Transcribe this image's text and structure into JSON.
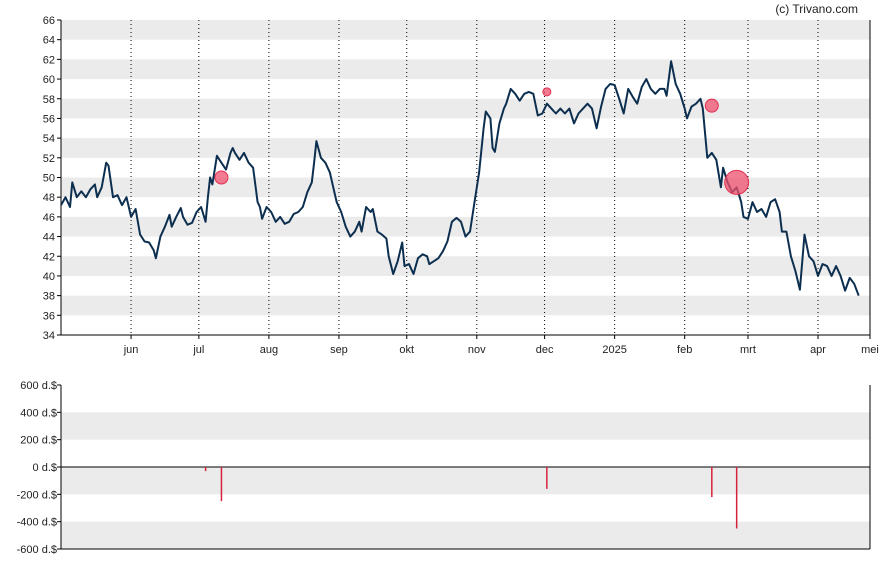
{
  "credit": "(c) Trivano.com",
  "colors": {
    "price_line": "#0d2f4f",
    "band": "#ebebeb",
    "marker": "#f0506e",
    "bar": "#d6233c",
    "axis": "#000000"
  },
  "chart_data": [
    {
      "type": "line",
      "ylim": [
        34,
        66
      ],
      "y_ticks": [
        "34",
        "36",
        "38",
        "40",
        "42",
        "44",
        "46",
        "48",
        "50",
        "52",
        "54",
        "56",
        "58",
        "60",
        "62",
        "64",
        "66"
      ],
      "x_range_days": [
        0,
        358
      ],
      "x_ticks": [
        {
          "label": "jun",
          "day": 31
        },
        {
          "label": "jul",
          "day": 61
        },
        {
          "label": "aug",
          "day": 92
        },
        {
          "label": "sep",
          "day": 123
        },
        {
          "label": "okt",
          "day": 153
        },
        {
          "label": "nov",
          "day": 184
        },
        {
          "label": "dec",
          "day": 214
        },
        {
          "label": "2025",
          "day": 245
        },
        {
          "label": "feb",
          "day": 276
        },
        {
          "label": "mrt",
          "day": 304
        },
        {
          "label": "apr",
          "day": 335
        },
        {
          "label": "mei",
          "day": 358
        }
      ],
      "series": [
        {
          "values": [
            [
              0,
              47.2
            ],
            [
              2,
              48.0
            ],
            [
              4,
              47.0
            ],
            [
              5,
              49.5
            ],
            [
              7,
              48.0
            ],
            [
              9,
              48.6
            ],
            [
              11,
              48.0
            ],
            [
              13,
              48.8
            ],
            [
              15,
              49.3
            ],
            [
              16,
              48.0
            ],
            [
              18,
              49.0
            ],
            [
              20,
              51.5
            ],
            [
              21,
              51.2
            ],
            [
              23,
              48.0
            ],
            [
              25,
              48.2
            ],
            [
              27,
              47.2
            ],
            [
              29,
              48.0
            ],
            [
              31,
              46.0
            ],
            [
              33,
              46.8
            ],
            [
              35,
              44.2
            ],
            [
              37,
              43.5
            ],
            [
              39,
              43.4
            ],
            [
              41,
              42.6
            ],
            [
              42,
              41.8
            ],
            [
              44,
              44.0
            ],
            [
              46,
              45.0
            ],
            [
              48,
              46.2
            ],
            [
              49,
              45.0
            ],
            [
              51,
              46.0
            ],
            [
              53,
              46.9
            ],
            [
              54,
              46.0
            ],
            [
              56,
              45.2
            ],
            [
              58,
              45.4
            ],
            [
              60,
              46.5
            ],
            [
              62,
              47.0
            ],
            [
              64,
              45.5
            ],
            [
              65,
              48.0
            ],
            [
              66,
              50.0
            ],
            [
              67,
              49.3
            ],
            [
              69,
              52.2
            ],
            [
              71,
              51.5
            ],
            [
              73,
              50.8
            ],
            [
              75,
              52.5
            ],
            [
              76,
              53.0
            ],
            [
              77,
              52.5
            ],
            [
              79,
              51.8
            ],
            [
              81,
              52.5
            ],
            [
              83,
              51.5
            ],
            [
              85,
              51.0
            ],
            [
              87,
              47.5
            ],
            [
              88,
              47.0
            ],
            [
              89,
              45.8
            ],
            [
              91,
              47.0
            ],
            [
              93,
              46.5
            ],
            [
              95,
              45.5
            ],
            [
              97,
              46.0
            ],
            [
              99,
              45.3
            ],
            [
              101,
              45.5
            ],
            [
              103,
              46.3
            ],
            [
              105,
              46.5
            ],
            [
              107,
              47.0
            ],
            [
              109,
              48.5
            ],
            [
              111,
              49.5
            ],
            [
              112,
              51.5
            ],
            [
              113,
              53.7
            ],
            [
              115,
              52.0
            ],
            [
              117,
              51.5
            ],
            [
              119,
              50.5
            ],
            [
              121,
              48.5
            ],
            [
              122,
              47.5
            ],
            [
              124,
              46.5
            ],
            [
              126,
              45.0
            ],
            [
              128,
              44.0
            ],
            [
              130,
              44.5
            ],
            [
              132,
              45.5
            ],
            [
              133,
              44.5
            ],
            [
              135,
              47.0
            ],
            [
              137,
              46.5
            ],
            [
              138,
              46.8
            ],
            [
              140,
              44.5
            ],
            [
              142,
              44.2
            ],
            [
              144,
              43.8
            ],
            [
              145,
              42.0
            ],
            [
              147,
              40.2
            ],
            [
              149,
              41.5
            ],
            [
              151,
              43.4
            ],
            [
              152,
              41.0
            ],
            [
              154,
              41.2
            ],
            [
              156,
              40.2
            ],
            [
              158,
              41.8
            ],
            [
              160,
              42.2
            ],
            [
              162,
              42.0
            ],
            [
              163,
              41.2
            ],
            [
              165,
              41.5
            ],
            [
              167,
              41.8
            ],
            [
              169,
              42.5
            ],
            [
              171,
              43.5
            ],
            [
              173,
              45.5
            ],
            [
              175,
              45.9
            ],
            [
              177,
              45.5
            ],
            [
              179,
              44.0
            ],
            [
              181,
              44.5
            ],
            [
              183,
              47.5
            ],
            [
              185,
              50.5
            ],
            [
              187,
              55.0
            ],
            [
              188,
              56.7
            ],
            [
              190,
              56.0
            ],
            [
              191,
              53.0
            ],
            [
              192,
              52.6
            ],
            [
              194,
              55.5
            ],
            [
              196,
              57.0
            ],
            [
              197,
              57.5
            ],
            [
              199,
              59.0
            ],
            [
              201,
              58.5
            ],
            [
              203,
              57.8
            ],
            [
              205,
              58.5
            ],
            [
              207,
              58.7
            ],
            [
              209,
              58.5
            ],
            [
              211,
              56.3
            ],
            [
              213,
              56.5
            ],
            [
              215,
              57.5
            ],
            [
              217,
              57.0
            ],
            [
              219,
              56.5
            ],
            [
              221,
              57.0
            ],
            [
              223,
              56.5
            ],
            [
              225,
              57.0
            ],
            [
              227,
              55.5
            ],
            [
              229,
              56.5
            ],
            [
              231,
              57.0
            ],
            [
              233,
              57.5
            ],
            [
              235,
              57.0
            ],
            [
              237,
              55.0
            ],
            [
              239,
              57.2
            ],
            [
              241,
              59.0
            ],
            [
              243,
              59.5
            ],
            [
              245,
              59.4
            ],
            [
              247,
              58.0
            ],
            [
              249,
              56.5
            ],
            [
              251,
              59.0
            ],
            [
              253,
              58.2
            ],
            [
              255,
              57.5
            ],
            [
              257,
              59.2
            ],
            [
              259,
              60.0
            ],
            [
              261,
              59.0
            ],
            [
              263,
              58.5
            ],
            [
              265,
              59.0
            ],
            [
              267,
              59.0
            ],
            [
              268,
              58.3
            ],
            [
              270,
              61.8
            ],
            [
              272,
              59.5
            ],
            [
              274,
              58.5
            ],
            [
              276,
              57.0
            ],
            [
              277,
              56.0
            ],
            [
              279,
              57.2
            ],
            [
              281,
              57.5
            ],
            [
              283,
              58.0
            ],
            [
              284,
              57.0
            ],
            [
              286,
              52.0
            ],
            [
              288,
              52.5
            ],
            [
              290,
              51.8
            ],
            [
              292,
              49.0
            ],
            [
              293,
              51.0
            ],
            [
              295,
              49.5
            ],
            [
              297,
              48.5
            ],
            [
              299,
              49.0
            ],
            [
              301,
              47.5
            ],
            [
              302,
              46.0
            ],
            [
              304,
              45.8
            ],
            [
              306,
              47.5
            ],
            [
              308,
              46.5
            ],
            [
              310,
              46.8
            ],
            [
              312,
              46.0
            ],
            [
              314,
              47.5
            ],
            [
              316,
              47.8
            ],
            [
              318,
              46.5
            ],
            [
              319,
              44.5
            ],
            [
              321,
              44.5
            ],
            [
              323,
              42.0
            ],
            [
              325,
              40.5
            ],
            [
              327,
              38.6
            ],
            [
              329,
              44.2
            ],
            [
              331,
              42.0
            ],
            [
              333,
              41.5
            ],
            [
              335,
              40.0
            ],
            [
              337,
              41.2
            ],
            [
              339,
              41.0
            ],
            [
              341,
              40.0
            ],
            [
              343,
              41.0
            ],
            [
              345,
              40.0
            ],
            [
              347,
              38.5
            ],
            [
              349,
              39.8
            ],
            [
              351,
              39.2
            ],
            [
              353,
              38.0
            ]
          ]
        }
      ],
      "markers": [
        {
          "day": 71,
          "value": 50.0,
          "size": "small"
        },
        {
          "day": 215,
          "value": 58.7,
          "size": "tiny"
        },
        {
          "day": 288,
          "value": 57.3,
          "size": "small"
        },
        {
          "day": 299,
          "value": 49.5,
          "size": "large"
        }
      ]
    },
    {
      "type": "bar",
      "ylim": [
        -600,
        600
      ],
      "y_ticks": [
        "-600 d.$",
        "-400 d.$",
        "-200 d.$",
        "0 d.$",
        "200 d.$",
        "400 d.$",
        "600 d.$"
      ],
      "bars": [
        {
          "day": 64,
          "value": -30
        },
        {
          "day": 71,
          "value": -250
        },
        {
          "day": 215,
          "value": -160
        },
        {
          "day": 288,
          "value": -220
        },
        {
          "day": 299,
          "value": -450
        }
      ]
    }
  ]
}
